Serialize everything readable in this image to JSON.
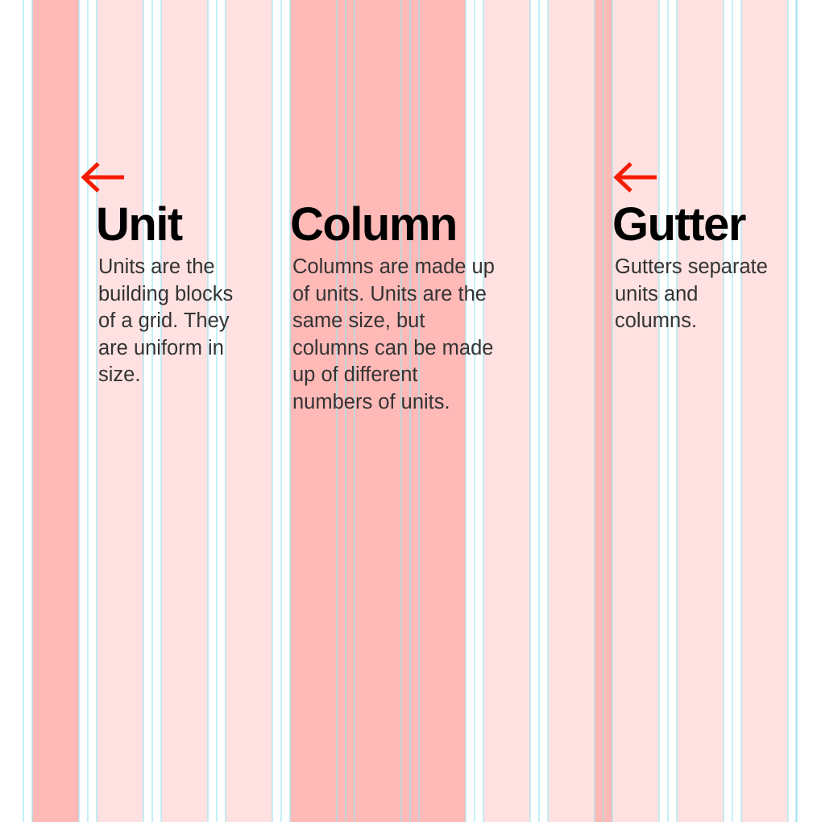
{
  "colors": {
    "unit_fill": "#ffe1e1",
    "highlight_fill": "#ffb9b7",
    "guide_line": "#9fe6f2",
    "arrow": "#f51c02",
    "heading": "#000000",
    "body_text": "#333333"
  },
  "grid": {
    "units": 12,
    "highlighted_units": [
      1,
      5,
      6,
      7
    ],
    "highlighted_gutter": 9
  },
  "labels": [
    {
      "key": "unit",
      "heading": "Unit",
      "lines": [
        "Units are the",
        "building blocks",
        "of a grid. They",
        "are uniform in",
        "size."
      ]
    },
    {
      "key": "column",
      "heading": "Column",
      "lines": [
        "Columns are made up",
        "of units. Units are the",
        "same size, but",
        "columns can be made",
        "up of different",
        "numbers of units."
      ]
    },
    {
      "key": "gutter",
      "heading": "Gutter",
      "lines": [
        "Gutters separate",
        "units and",
        "columns."
      ]
    }
  ],
  "arrows": [
    {
      "points_to": "unit",
      "icon": "arrow-left-icon"
    },
    {
      "points_to": "gutter",
      "icon": "arrow-left-icon"
    }
  ]
}
